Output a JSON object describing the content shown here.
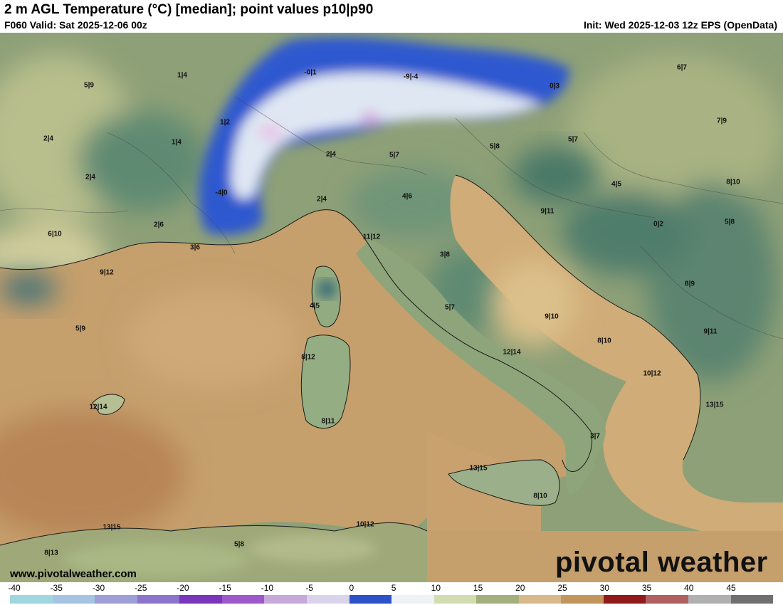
{
  "header": {
    "title": "2 m AGL Temperature (°C) [median]; point values p10|p90",
    "valid": "F060 Valid: Sat 2025-12-06 00z",
    "init": "Init: Wed 2025-12-03 12z EPS (OpenData)"
  },
  "footer": {
    "website": "www.pivotalweather.com",
    "brand": "pivotal weather"
  },
  "colorbar": {
    "ticks": [
      "-40",
      "-35",
      "-30",
      "-25",
      "-20",
      "-15",
      "-10",
      "-5",
      "0",
      "5",
      "10",
      "15",
      "20",
      "25",
      "30",
      "35",
      "40",
      "45"
    ],
    "colors": [
      "#9fd6df",
      "#a5c4e3",
      "#9e9ed9",
      "#8c74cc",
      "#7a36bb",
      "#9d58c9",
      "#c7a8db",
      "#d9d4ea",
      "#2b52c8",
      "#eef2f5",
      "#d2dcb0",
      "#a3b07b",
      "#d8b98a",
      "#c2955c",
      "#8e1a1a",
      "#b06060",
      "#b0b0b0",
      "#707070"
    ]
  },
  "point_values": [
    {
      "label": "1|4"
    },
    {
      "label": "5|9"
    },
    {
      "label": "-0|1"
    },
    {
      "label": "-9|-4"
    },
    {
      "label": "0|3"
    },
    {
      "label": "6|7"
    },
    {
      "label": "1|2"
    },
    {
      "label": "5|7"
    },
    {
      "label": "1|4"
    },
    {
      "label": "2|4"
    },
    {
      "label": "2|4"
    },
    {
      "label": "5|8"
    },
    {
      "label": "5|7"
    },
    {
      "label": "7|9"
    },
    {
      "label": "2|4"
    },
    {
      "label": "-4|0"
    },
    {
      "label": "4|6"
    },
    {
      "label": "4|5"
    },
    {
      "label": "8|10"
    },
    {
      "label": "2|4"
    },
    {
      "label": "9|11"
    },
    {
      "label": "6|10"
    },
    {
      "label": "2|6"
    },
    {
      "label": "11|12"
    },
    {
      "label": "0|2"
    },
    {
      "label": "5|8"
    },
    {
      "label": "3|6"
    },
    {
      "label": "3|8"
    },
    {
      "label": "9|12"
    },
    {
      "label": "8|9"
    },
    {
      "label": "4|5"
    },
    {
      "label": "5|7"
    },
    {
      "label": "9|10"
    },
    {
      "label": "5|9"
    },
    {
      "label": "9|11"
    },
    {
      "label": "8|10"
    },
    {
      "label": "12|14"
    },
    {
      "label": "8|12"
    },
    {
      "label": "10|12"
    },
    {
      "label": "12|14"
    },
    {
      "label": "13|15"
    },
    {
      "label": "8|11"
    },
    {
      "label": "3|7"
    },
    {
      "label": "13|15"
    },
    {
      "label": "8|10"
    },
    {
      "label": "13|15"
    },
    {
      "label": "10|12"
    },
    {
      "label": "8|13"
    },
    {
      "label": "5|8"
    }
  ]
}
